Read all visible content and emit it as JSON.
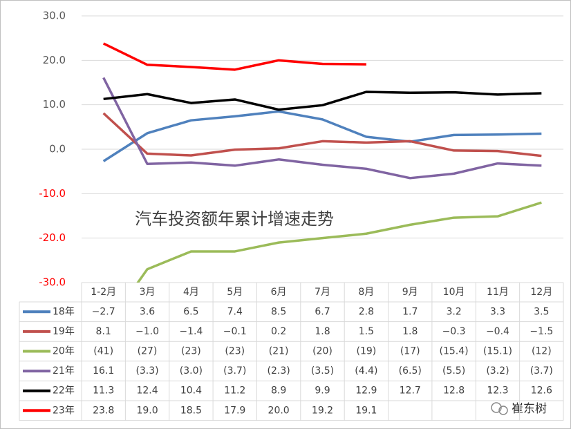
{
  "chart_data": {
    "type": "line",
    "annotation": "汽车投资额年累计增速走势",
    "watermark": "崔东树",
    "categories": [
      "1-2月",
      "3月",
      "4月",
      "5月",
      "6月",
      "7月",
      "8月",
      "9月",
      "10月",
      "11月",
      "12月"
    ],
    "series": [
      {
        "name": "18年",
        "color": "#4f81bd",
        "values": [
          -2.7,
          3.6,
          6.5,
          7.4,
          8.5,
          6.7,
          2.8,
          1.7,
          3.2,
          3.3,
          3.5
        ],
        "value_labels": [
          "−2.7",
          "3.6",
          "6.5",
          "7.4",
          "8.5",
          "6.7",
          "2.8",
          "1.7",
          "3.2",
          "3.3",
          "3.5"
        ]
      },
      {
        "name": "19年",
        "color": "#c0504d",
        "values": [
          8.1,
          -1.0,
          -1.4,
          -0.1,
          0.2,
          1.8,
          1.5,
          1.8,
          -0.3,
          -0.4,
          -1.5
        ],
        "value_labels": [
          "8.1",
          "−1.0",
          "−1.4",
          "−0.1",
          "0.2",
          "1.8",
          "1.5",
          "1.8",
          "−0.3",
          "−0.4",
          "−1.5"
        ]
      },
      {
        "name": "20年",
        "color": "#9bbb59",
        "values": [
          -41,
          -27,
          -23,
          -23,
          -21,
          -20,
          -19,
          -17,
          -15.4,
          -15.1,
          -12
        ],
        "value_labels": [
          "(41)",
          "(27)",
          "(23)",
          "(23)",
          "(21)",
          "(20)",
          "(19)",
          "(17)",
          "(15.4)",
          "(15.1)",
          "(12)"
        ]
      },
      {
        "name": "21年",
        "color": "#8064a2",
        "values": [
          16.1,
          -3.3,
          -3.0,
          -3.7,
          -2.3,
          -3.5,
          -4.4,
          -6.5,
          -5.5,
          -3.2,
          -3.7
        ],
        "value_labels": [
          "16.1",
          "(3.3)",
          "(3.0)",
          "(3.7)",
          "(2.3)",
          "(3.5)",
          "(4.4)",
          "(6.5)",
          "(5.5)",
          "(3.2)",
          "(3.7)"
        ]
      },
      {
        "name": "22年",
        "color": "#000000",
        "values": [
          11.3,
          12.4,
          10.4,
          11.2,
          8.9,
          9.9,
          12.9,
          12.7,
          12.8,
          12.3,
          12.6
        ],
        "value_labels": [
          "11.3",
          "12.4",
          "10.4",
          "11.2",
          "8.9",
          "9.9",
          "12.9",
          "12.7",
          "12.8",
          "12.3",
          "12.6"
        ]
      },
      {
        "name": "23年",
        "color": "#ff0000",
        "values": [
          23.8,
          19.0,
          18.5,
          17.9,
          20.0,
          19.2,
          19.1,
          null,
          null,
          null,
          null
        ],
        "value_labels": [
          "23.8",
          "19.0",
          "18.5",
          "17.9",
          "20.0",
          "19.2",
          "19.1",
          null,
          null,
          null,
          null
        ]
      }
    ],
    "ylim": [
      -30,
      30
    ],
    "yticks": [
      {
        "value": 30,
        "label": "30.0"
      },
      {
        "value": 20,
        "label": "20.0"
      },
      {
        "value": 10,
        "label": "10.0"
      },
      {
        "value": 0,
        "label": "0.0"
      },
      {
        "value": -10,
        "label": "-10.0"
      },
      {
        "value": -20,
        "label": "-20.0"
      },
      {
        "value": -30,
        "label": "-30.0"
      }
    ],
    "grid": true
  }
}
